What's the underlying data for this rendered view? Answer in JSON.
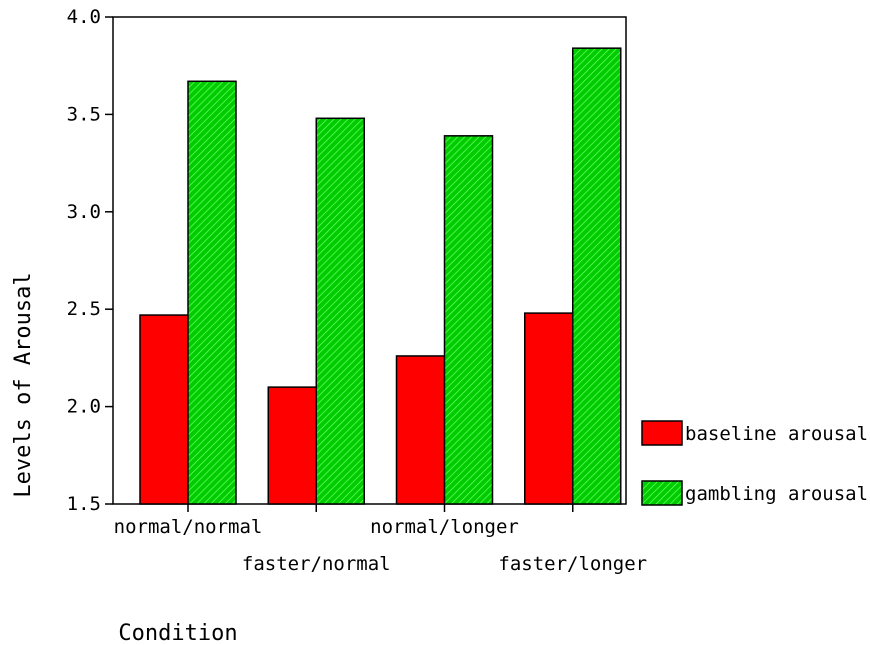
{
  "chart_data": {
    "type": "bar",
    "categories": [
      "normal/normal",
      "faster/normal",
      "normal/longer",
      "faster/longer"
    ],
    "series": [
      {
        "name": "baseline arousal",
        "color": "#ff0000",
        "values": [
          2.47,
          2.1,
          2.26,
          2.48
        ]
      },
      {
        "name": "gambling arousal",
        "color": "#00cc00",
        "hatch_color": "#66ff66",
        "values": [
          3.67,
          3.48,
          3.39,
          3.84
        ]
      }
    ],
    "title": "",
    "xlabel": "Condition",
    "ylabel": "Levels of Arousal",
    "ylim": [
      1.5,
      4.0
    ],
    "yticks": [
      "1.5",
      "2.0",
      "2.5",
      "3.0",
      "3.5",
      "4.0"
    ],
    "grid": false,
    "legend_position": "right"
  }
}
